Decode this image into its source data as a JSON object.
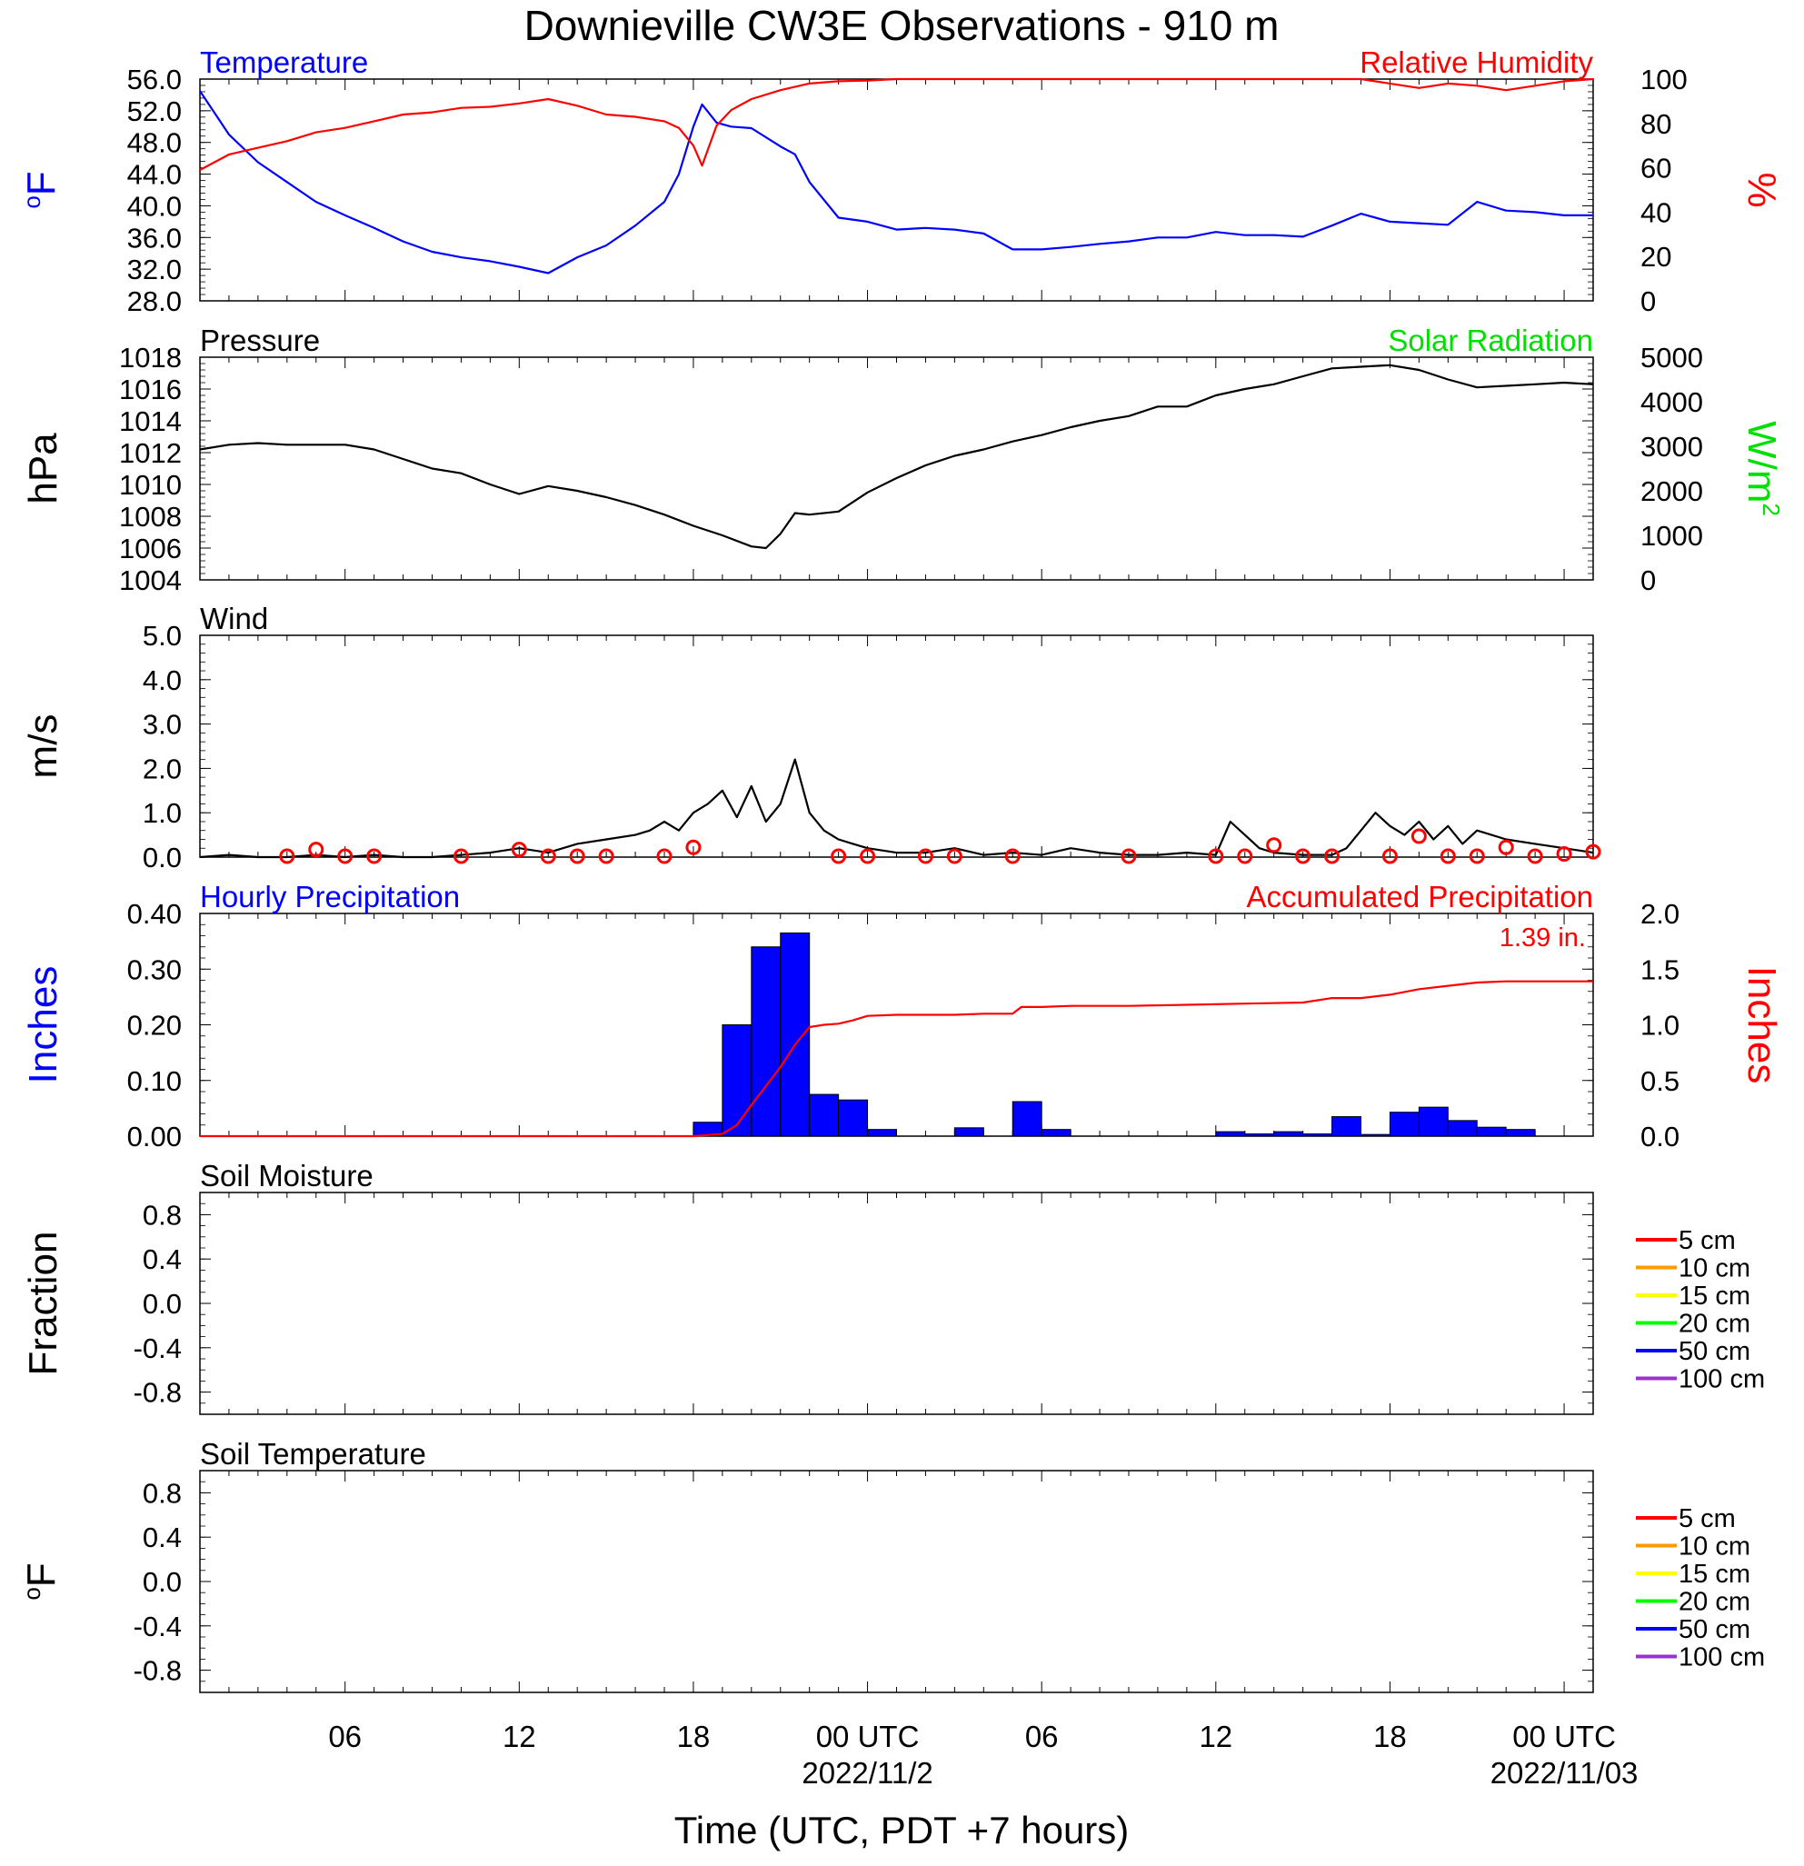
{
  "page": {
    "title": "Downieville CW3E Observations - 910 m",
    "x_axis_label": "Time (UTC, PDT +7 hours)",
    "x_ticks": [
      "06",
      "12",
      "18",
      "00 UTC",
      "06",
      "12",
      "18",
      "00 UTC"
    ],
    "x_dates": [
      "2022/11/2",
      "2022/11/03"
    ]
  },
  "chart_data": [
    {
      "type": "line",
      "title_left": "Temperature",
      "title_right": "Relative Humidity",
      "ylabel_left": "°F",
      "ylabel_right": "%",
      "x_unit": "hours since 2022/11/01 01 UTC",
      "xlim": [
        0,
        48
      ],
      "ylim_left": [
        28,
        56
      ],
      "ylim_right": [
        0,
        100
      ],
      "yticks_left": [
        "56.0",
        "52.0",
        "48.0",
        "44.0",
        "40.0",
        "36.0",
        "32.0",
        "28.0"
      ],
      "yticks_right": [
        "100",
        "80",
        "60",
        "40",
        "20",
        "0"
      ],
      "colors": {
        "temperature": "#0000ff",
        "humidity": "#ff0000"
      },
      "series": [
        {
          "name": "Temperature",
          "axis": "left",
          "x": [
            0,
            1,
            2,
            3,
            4,
            5,
            6,
            7,
            8,
            9,
            10,
            11,
            12,
            13,
            14,
            15,
            16,
            16.5,
            17,
            17.3,
            17.8,
            18.3,
            19,
            20,
            20.5,
            21,
            22,
            23,
            24,
            25,
            26,
            27,
            28,
            29,
            30,
            31,
            32,
            33,
            34,
            35,
            36,
            37,
            38,
            39,
            40,
            41,
            42,
            43,
            44,
            45,
            46,
            47,
            48
          ],
          "y": [
            54.5,
            49,
            45.5,
            43,
            40.5,
            38.8,
            37.2,
            35.5,
            34.2,
            33.5,
            33,
            32.3,
            31.5,
            33.5,
            35,
            37.5,
            40.5,
            44,
            50,
            52.8,
            50.5,
            50,
            49.8,
            47.5,
            46.5,
            43,
            38.5,
            38,
            37,
            37.2,
            37,
            36.5,
            34.5,
            34.5,
            34.8,
            35.2,
            35.5,
            36,
            36,
            36.7,
            36.3,
            36.3,
            36.1,
            37.5,
            39,
            38,
            37.8,
            37.6,
            40.5,
            39.4,
            39.2,
            38.8,
            38.8
          ]
        },
        {
          "name": "Relative Humidity",
          "axis": "right",
          "x": [
            0,
            1,
            2,
            3,
            4,
            5,
            6,
            7,
            8,
            9,
            10,
            11,
            12,
            13,
            14,
            15,
            16,
            16.5,
            17,
            17.3,
            17.8,
            18.3,
            19,
            20,
            21,
            22,
            23,
            24,
            26,
            28,
            30,
            32,
            34,
            36,
            38,
            40,
            41,
            42,
            43,
            44,
            45,
            46,
            47,
            48
          ],
          "y": [
            59,
            66,
            69,
            72,
            76,
            78,
            81,
            84,
            85,
            87,
            87.5,
            89,
            91,
            88,
            84,
            83,
            81,
            78,
            70,
            61,
            79,
            86,
            91,
            95,
            98,
            99,
            99.3,
            100,
            100,
            100,
            100,
            100,
            100,
            100,
            100,
            100,
            98,
            96,
            98,
            97,
            95,
            97,
            99,
            100
          ]
        }
      ]
    },
    {
      "type": "line",
      "title_left": "Pressure",
      "title_right": "Solar Radiation",
      "ylabel_left": "hPa",
      "ylabel_right": "W/m2",
      "xlim": [
        0,
        48
      ],
      "ylim_left": [
        1004,
        1018
      ],
      "ylim_right": [
        0,
        5000
      ],
      "yticks_left": [
        "1018",
        "1016",
        "1014",
        "1012",
        "1010",
        "1008",
        "1006",
        "1004"
      ],
      "yticks_right": [
        "5000",
        "4000",
        "3000",
        "2000",
        "1000",
        "0"
      ],
      "colors": {
        "pressure": "#000000",
        "solar": "#00ff00"
      },
      "series": [
        {
          "name": "Pressure",
          "axis": "left",
          "x": [
            0,
            1,
            2,
            3,
            4,
            5,
            6,
            7,
            8,
            9,
            10,
            11,
            12,
            13,
            14,
            15,
            16,
            17,
            18,
            19,
            19.5,
            20,
            20.5,
            21,
            22,
            23,
            24,
            25,
            26,
            27,
            28,
            29,
            30,
            31,
            32,
            33,
            34,
            35,
            36,
            37,
            38,
            39,
            40,
            41,
            42,
            43,
            44,
            45,
            46,
            47,
            48
          ],
          "y": [
            1012.2,
            1012.5,
            1012.6,
            1012.5,
            1012.5,
            1012.5,
            1012.2,
            1011.6,
            1011.0,
            1010.7,
            1010.0,
            1009.4,
            1009.9,
            1009.6,
            1009.2,
            1008.7,
            1008.1,
            1007.4,
            1006.8,
            1006.1,
            1006.0,
            1006.9,
            1008.2,
            1008.1,
            1008.3,
            1009.5,
            1010.4,
            1011.2,
            1011.8,
            1012.2,
            1012.7,
            1013.1,
            1013.6,
            1014.0,
            1014.3,
            1014.9,
            1014.9,
            1015.6,
            1016.0,
            1016.3,
            1016.8,
            1017.3,
            1017.4,
            1017.5,
            1017.2,
            1016.6,
            1016.1,
            1016.2,
            1016.3,
            1016.4,
            1016.3
          ]
        },
        {
          "name": "Solar Radiation",
          "axis": "right",
          "x": [],
          "y": []
        }
      ]
    },
    {
      "type": "line",
      "title_left": "Wind",
      "ylabel_left": "m/s",
      "xlim": [
        0,
        48
      ],
      "ylim_left": [
        0,
        5
      ],
      "yticks_left": [
        "5.0",
        "4.0",
        "3.0",
        "2.0",
        "1.0",
        "0.0"
      ],
      "colors": {
        "speed": "#000000",
        "markers": "#ff0000"
      },
      "series": [
        {
          "name": "Wind speed",
          "axis": "left",
          "x": [
            0,
            1,
            2,
            3,
            4,
            5,
            6,
            7,
            8,
            9,
            10,
            11,
            12,
            13,
            14,
            15,
            15.5,
            16,
            16.5,
            17,
            17.5,
            18,
            18.5,
            19,
            19.5,
            20,
            20.5,
            21,
            21.5,
            22,
            22.5,
            23,
            24,
            25,
            26,
            27,
            28,
            29,
            30,
            31,
            32,
            33,
            34,
            35,
            35.5,
            36,
            36.5,
            37,
            38,
            39,
            39.5,
            40,
            40.5,
            41,
            41.5,
            42,
            42.5,
            43,
            43.5,
            44,
            45,
            46,
            47,
            48
          ],
          "y": [
            0.0,
            0.05,
            0.0,
            0.0,
            0.05,
            0.0,
            0.05,
            0.0,
            0.0,
            0.05,
            0.1,
            0.2,
            0.1,
            0.3,
            0.4,
            0.5,
            0.6,
            0.8,
            0.6,
            1.0,
            1.2,
            1.5,
            0.9,
            1.6,
            0.8,
            1.2,
            2.2,
            1.0,
            0.6,
            0.4,
            0.3,
            0.2,
            0.1,
            0.1,
            0.2,
            0.05,
            0.1,
            0.05,
            0.2,
            0.1,
            0.05,
            0.05,
            0.1,
            0.05,
            0.8,
            0.5,
            0.2,
            0.1,
            0.05,
            0.05,
            0.2,
            0.6,
            1.0,
            0.7,
            0.5,
            0.8,
            0.4,
            0.7,
            0.3,
            0.6,
            0.4,
            0.3,
            0.2,
            0.1
          ]
        },
        {
          "name": "Hourly wind",
          "axis": "left",
          "marker": "circle",
          "x": [
            2,
            3,
            4,
            5,
            8,
            10,
            11,
            12,
            13,
            15,
            16,
            21,
            22,
            24,
            25,
            27,
            31,
            34,
            35,
            36,
            37,
            38,
            40,
            41,
            42,
            43,
            44,
            45,
            46,
            47
          ],
          "y": [
            0.0,
            0.15,
            0.0,
            0.0,
            0.0,
            0.15,
            0.0,
            0.0,
            0.0,
            0.0,
            0.2,
            0.0,
            0.0,
            0.0,
            0.0,
            0.0,
            0.0,
            0.0,
            0.0,
            0.25,
            0.0,
            0.0,
            0.0,
            0.45,
            0.0,
            0.0,
            0.2,
            0.0,
            0.05,
            0.1
          ]
        }
      ]
    },
    {
      "type": "bar",
      "title_left": "Hourly Precipitation",
      "title_right": "Accumulated Precipitation",
      "annotation": "1.39 in.",
      "ylabel_left": "Inches",
      "ylabel_right": "Inches",
      "xlim": [
        0,
        48
      ],
      "ylim_left": [
        0,
        0.4
      ],
      "ylim_right": [
        0,
        2.0
      ],
      "yticks_left": [
        "0.40",
        "0.30",
        "0.20",
        "0.10",
        "0.00"
      ],
      "yticks_right": [
        "2.0",
        "1.5",
        "1.0",
        "0.5",
        "0.0"
      ],
      "colors": {
        "bars": "#0000ff",
        "accumulated": "#ff0000"
      },
      "series": [
        {
          "name": "Hourly Precipitation",
          "axis": "left",
          "bar_start_hour": [
            17,
            18,
            19,
            20,
            21,
            22,
            23,
            26,
            28,
            29,
            35,
            36,
            37,
            38,
            39,
            40,
            41,
            42,
            43,
            44,
            45
          ],
          "y": [
            0.025,
            0.2,
            0.34,
            0.365,
            0.075,
            0.065,
            0.012,
            0.015,
            0.062,
            0.012,
            0.008,
            0.004,
            0.008,
            0.004,
            0.035,
            0.003,
            0.043,
            0.052,
            0.028,
            0.016,
            0.012
          ]
        },
        {
          "name": "Accumulated Precipitation",
          "axis": "right",
          "x": [
            0,
            17,
            18,
            18.5,
            19,
            19.5,
            20,
            20.5,
            21,
            21.5,
            22,
            22.5,
            23,
            24,
            25,
            26,
            27,
            28,
            28.3,
            29,
            30,
            32,
            34,
            36,
            38,
            39,
            40,
            41,
            42,
            43,
            44,
            45,
            46,
            47,
            48
          ],
          "y": [
            0,
            0,
            0.02,
            0.1,
            0.28,
            0.45,
            0.62,
            0.82,
            0.98,
            1.0,
            1.01,
            1.04,
            1.08,
            1.09,
            1.09,
            1.09,
            1.1,
            1.1,
            1.16,
            1.16,
            1.17,
            1.17,
            1.18,
            1.19,
            1.2,
            1.24,
            1.24,
            1.27,
            1.32,
            1.35,
            1.38,
            1.39,
            1.39,
            1.39,
            1.39
          ]
        }
      ]
    },
    {
      "type": "line",
      "title_left": "Soil Moisture",
      "ylabel_left": "Fraction",
      "xlim": [
        0,
        48
      ],
      "ylim_left": [
        -1,
        1
      ],
      "yticks_left": [
        "0.8",
        "0.4",
        "0.0",
        "-0.4",
        "-0.8"
      ],
      "legend": [
        "5 cm",
        "10 cm",
        "15 cm",
        "20 cm",
        "50 cm",
        "100 cm"
      ],
      "legend_colors": [
        "#ff0000",
        "#ff9900",
        "#ffff00",
        "#00ff00",
        "#0000ff",
        "#9933cc"
      ],
      "series": []
    },
    {
      "type": "line",
      "title_left": "Soil Temperature",
      "ylabel_left": "°F",
      "xlim": [
        0,
        48
      ],
      "ylim_left": [
        -1,
        1
      ],
      "yticks_left": [
        "0.8",
        "0.4",
        "0.0",
        "-0.4",
        "-0.8"
      ],
      "legend": [
        "5 cm",
        "10 cm",
        "15 cm",
        "20 cm",
        "50 cm",
        "100 cm"
      ],
      "legend_colors": [
        "#ff0000",
        "#ff9900",
        "#ffff00",
        "#00ff00",
        "#0000ff",
        "#9933cc"
      ],
      "series": []
    }
  ]
}
